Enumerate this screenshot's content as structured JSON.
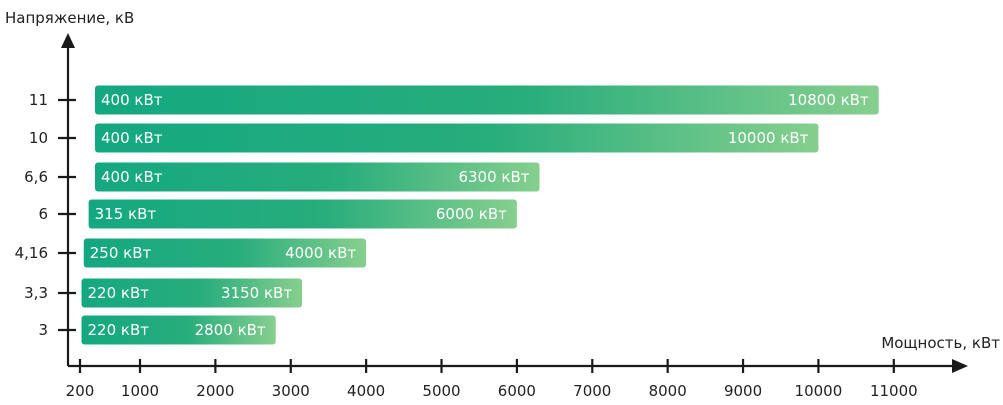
{
  "chart_data": {
    "type": "bar",
    "orientation": "horizontal",
    "ylabel": "Напряжение, кВ",
    "xlabel": "Мощность, кВт",
    "x_ticks": [
      200,
      1000,
      2000,
      3000,
      4000,
      5000,
      6000,
      7000,
      8000,
      9000,
      10000,
      11000
    ],
    "x_tick_labels": [
      "200",
      "1000",
      "2000",
      "3000",
      "4000",
      "5000",
      "6000",
      "7000",
      "8000",
      "9000",
      "10000",
      "11000"
    ],
    "categories": [
      "3",
      "3,3",
      "4,16",
      "6",
      "6,6",
      "10",
      "11"
    ],
    "ranges": [
      {
        "min": 220,
        "max": 2800
      },
      {
        "min": 220,
        "max": 3150
      },
      {
        "min": 250,
        "max": 4000
      },
      {
        "min": 315,
        "max": 6000
      },
      {
        "min": 400,
        "max": 6300
      },
      {
        "min": 400,
        "max": 10000
      },
      {
        "min": 400,
        "max": 10800
      }
    ],
    "min_labels": [
      "220 кВт",
      "220 кВт",
      "250 кВт",
      "315 кВт",
      "400 кВт",
      "400 кВт",
      "400 кВт"
    ],
    "max_labels": [
      "2800 кВт",
      "3150 кВт",
      "4000 кВт",
      "6000 кВт",
      "6300 кВт",
      "10000 кВт",
      "10800 кВт"
    ],
    "grid": false,
    "colors": {
      "gradient_start": "#14a880",
      "gradient_end": "#86cf8e",
      "axis": "#1a1a1a",
      "text": "#222222",
      "bar_text": "#ffffff"
    }
  }
}
